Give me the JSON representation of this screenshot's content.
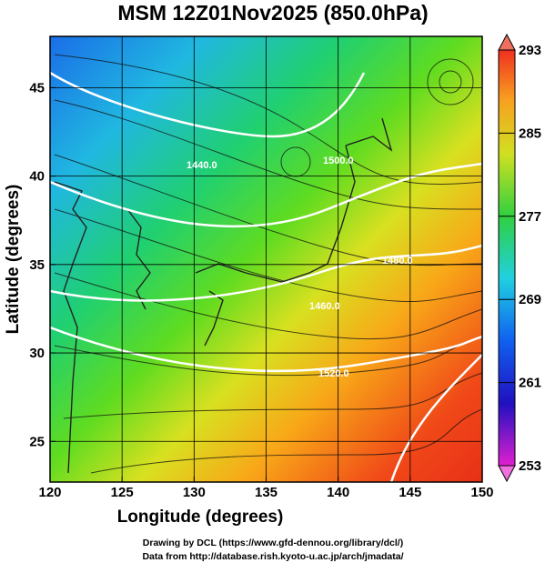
{
  "chart_data": {
    "type": "map",
    "title": "MSM 12Z01Nov2025 (850.0hPa)",
    "xlabel": "Longitude (degrees)",
    "ylabel": "Latitude  (degrees)",
    "xlim": [
      120,
      150
    ],
    "xticks": [
      120,
      125,
      130,
      135,
      140,
      145,
      150
    ],
    "ylim": [
      22.7,
      47.9
    ],
    "yticks": [
      25,
      30,
      35,
      40,
      45
    ],
    "grid": true,
    "colorbar": {
      "lim": [
        253,
        293
      ],
      "ticks": [
        253,
        261,
        269,
        277,
        285,
        293
      ]
    },
    "contour_labels": [
      "1520.0",
      "1500.0",
      "1480.0",
      "1460.0",
      "1440.0"
    ],
    "footer": [
      "Drawing by DCL (https://www.gfd-dennou.org/library/dcl/)",
      "Data from http://database.rish.kyoto-u.ac.jp/arch/jmadata/"
    ]
  }
}
